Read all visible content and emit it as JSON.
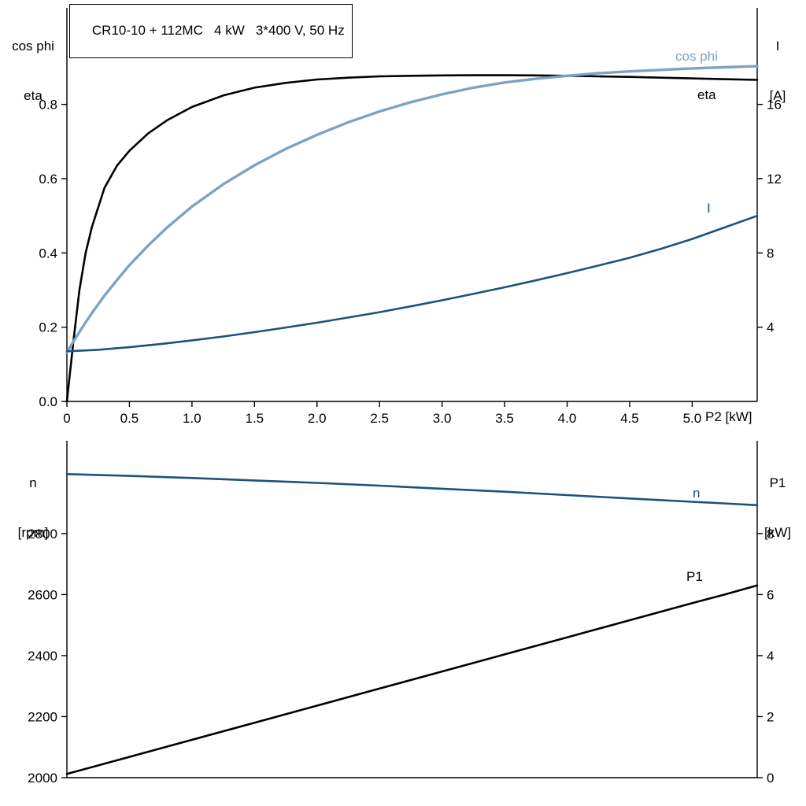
{
  "colors": {
    "black": "#000000",
    "light_blue": "#7da3c2",
    "dark_blue": "#1b537c"
  },
  "chart_data": [
    {
      "type": "line",
      "title": "CR10-10 + 112MC   4 kW   3*400 V, 50 Hz",
      "xlabel": "P2 [kW]",
      "ylabel_left": [
        "cos phi",
        "eta"
      ],
      "ylabel_right": [
        "I",
        "[A]"
      ],
      "xlim": [
        0,
        5.52
      ],
      "ylim_left": [
        0,
        1.06
      ],
      "ylim_right": [
        0,
        21.2
      ],
      "grid": false,
      "legend": "inline-labels",
      "xticks": {
        "values": [
          0,
          0.5,
          1.0,
          1.5,
          2.0,
          2.5,
          3.0,
          3.5,
          4.0,
          4.5,
          5.0
        ],
        "labels": [
          "0",
          "0.5",
          "1.0",
          "1.5",
          "2.0",
          "2.5",
          "3.0",
          "3.5",
          "4.0",
          "4.5",
          "5.0"
        ]
      },
      "yticks_left": {
        "values": [
          0.0,
          0.2,
          0.4,
          0.6,
          0.8
        ],
        "labels": [
          "0.0",
          "0.2",
          "0.4",
          "0.6",
          "0.8"
        ]
      },
      "yticks_right": {
        "values": [
          4,
          8,
          12,
          16
        ],
        "labels": [
          "4",
          "8",
          "12",
          "16"
        ]
      },
      "series": [
        {
          "name": "eta",
          "label": "eta",
          "axis": "left",
          "color": "black",
          "width": 2.6,
          "x": [
            0,
            0.05,
            0.1,
            0.15,
            0.2,
            0.3,
            0.4,
            0.5,
            0.65,
            0.8,
            1.0,
            1.25,
            1.5,
            1.75,
            2.0,
            2.25,
            2.5,
            2.75,
            3.0,
            3.25,
            3.5,
            3.75,
            4.0,
            4.25,
            4.5,
            4.75,
            5.0,
            5.25,
            5.52
          ],
          "y": [
            0,
            0.155,
            0.3,
            0.4,
            0.47,
            0.575,
            0.635,
            0.675,
            0.722,
            0.757,
            0.793,
            0.824,
            0.845,
            0.858,
            0.867,
            0.872,
            0.8755,
            0.877,
            0.878,
            0.8785,
            0.8785,
            0.878,
            0.877,
            0.8755,
            0.874,
            0.872,
            0.87,
            0.868,
            0.866
          ]
        },
        {
          "name": "cos phi",
          "label": "cos phi",
          "axis": "left",
          "color": "light_blue",
          "width": 3.4,
          "x": [
            0,
            0.05,
            0.1,
            0.15,
            0.2,
            0.3,
            0.4,
            0.5,
            0.65,
            0.8,
            1.0,
            1.25,
            1.5,
            1.75,
            2.0,
            2.25,
            2.5,
            2.75,
            3.0,
            3.25,
            3.5,
            3.75,
            4.0,
            4.25,
            4.5,
            4.75,
            5.0,
            5.25,
            5.52
          ],
          "y": [
            0.132,
            0.16,
            0.187,
            0.213,
            0.238,
            0.285,
            0.327,
            0.367,
            0.42,
            0.468,
            0.525,
            0.585,
            0.636,
            0.68,
            0.718,
            0.752,
            0.781,
            0.806,
            0.827,
            0.845,
            0.859,
            0.869,
            0.877,
            0.884,
            0.889,
            0.893,
            0.897,
            0.9,
            0.903
          ]
        },
        {
          "name": "I",
          "label": "I",
          "axis": "right",
          "color": "dark_blue",
          "width": 2.6,
          "x": [
            0,
            0.25,
            0.5,
            0.75,
            1.0,
            1.25,
            1.5,
            1.75,
            2.0,
            2.25,
            2.5,
            2.75,
            3.0,
            3.25,
            3.5,
            3.75,
            4.0,
            4.25,
            4.5,
            4.75,
            5.0,
            5.25,
            5.52
          ],
          "y": [
            2.7,
            2.78,
            2.92,
            3.09,
            3.29,
            3.5,
            3.73,
            3.98,
            4.24,
            4.52,
            4.81,
            5.12,
            5.45,
            5.79,
            6.15,
            6.52,
            6.91,
            7.32,
            7.74,
            8.22,
            8.75,
            9.35,
            10.0
          ]
        }
      ]
    },
    {
      "type": "line",
      "title": "",
      "xlabel": "",
      "ylabel_left": [
        "n",
        "[rpm]"
      ],
      "ylabel_right": [
        "P1",
        "[kW]"
      ],
      "xlim": [
        0,
        5.52
      ],
      "ylim_left": [
        2000,
        3104
      ],
      "ylim_right": [
        0,
        11.04
      ],
      "grid": false,
      "legend": "inline-labels",
      "xticks": null,
      "yticks_left": {
        "values": [
          2000,
          2200,
          2400,
          2600,
          2800
        ],
        "labels": [
          "2000",
          "2200",
          "2400",
          "2600",
          "2800"
        ]
      },
      "yticks_right": {
        "values": [
          0,
          2,
          4,
          6,
          8
        ],
        "labels": [
          "0",
          "2",
          "4",
          "6",
          "8"
        ]
      },
      "series": [
        {
          "name": "n",
          "label": "n",
          "axis": "left",
          "color": "dark_blue",
          "width": 2.6,
          "x": [
            0,
            0.5,
            1.0,
            1.5,
            2.0,
            2.5,
            3.0,
            3.5,
            4.0,
            4.5,
            5.0,
            5.25,
            5.52
          ],
          "y": [
            2995,
            2989,
            2982,
            2974,
            2966,
            2957,
            2947,
            2937,
            2926,
            2915,
            2904,
            2899,
            2893
          ]
        },
        {
          "name": "P1",
          "label": "P1",
          "axis": "right",
          "color": "black",
          "width": 2.6,
          "x": [
            0,
            0.5,
            1.0,
            1.5,
            2.0,
            2.5,
            3.0,
            3.5,
            4.0,
            4.5,
            5.0,
            5.25,
            5.52
          ],
          "y": [
            0.12,
            0.68,
            1.24,
            1.8,
            2.36,
            2.92,
            3.48,
            4.04,
            4.6,
            5.16,
            5.72,
            5.99,
            6.3
          ]
        }
      ]
    }
  ]
}
